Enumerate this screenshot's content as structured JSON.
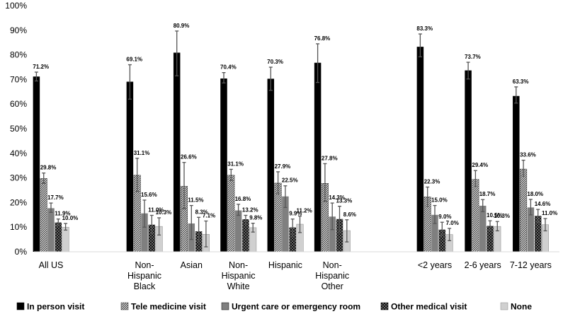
{
  "chart_data": {
    "type": "bar",
    "title": "",
    "xlabel": "",
    "ylabel": "",
    "ylim": [
      0,
      100
    ],
    "yticks": [
      "0%",
      "10%",
      "20%",
      "30%",
      "40%",
      "50%",
      "60%",
      "70%",
      "80%",
      "90%",
      "100%"
    ],
    "gridlines": false,
    "legend_position": "bottom",
    "categories": [
      {
        "label": [
          "All US"
        ],
        "group": 0
      },
      {
        "label": [
          "Non-",
          "Hispanic",
          "Black"
        ],
        "group": 1
      },
      {
        "label": [
          "Asian"
        ],
        "group": 1
      },
      {
        "label": [
          "Non-",
          "Hispanic",
          "White"
        ],
        "group": 1
      },
      {
        "label": [
          "Hispanic"
        ],
        "group": 1
      },
      {
        "label": [
          "Non-",
          "Hispanic",
          "Other"
        ],
        "group": 1
      },
      {
        "label": [
          "<2 years"
        ],
        "group": 2
      },
      {
        "label": [
          "2-6 years"
        ],
        "group": 2
      },
      {
        "label": [
          "7-12 years"
        ],
        "group": 2
      }
    ],
    "series": [
      {
        "name": "In person visit",
        "pattern": "solid-black",
        "values": [
          71.2,
          69.1,
          80.9,
          70.4,
          70.3,
          76.8,
          83.3,
          73.7,
          63.3
        ],
        "err_low": [
          69.4,
          62.0,
          71.5,
          68.6,
          65.6,
          68.8,
          79.2,
          70.2,
          60.4
        ],
        "err_high": [
          73.0,
          76.0,
          89.7,
          72.8,
          75.0,
          84.5,
          88.5,
          77.0,
          67.0
        ],
        "labels": [
          "71.2%",
          "69.1%",
          "80.9%",
          "70.4%",
          "70.3%",
          "76.8%",
          "83.3%",
          "73.7%",
          "63.3%"
        ]
      },
      {
        "name": "Tele medicine visit",
        "pattern": "hatched",
        "values": [
          29.8,
          31.1,
          26.6,
          31.1,
          27.9,
          27.8,
          22.3,
          29.4,
          33.6
        ],
        "err_low": [
          27.8,
          24.5,
          17.5,
          29.0,
          23.5,
          20.5,
          18.5,
          26.6,
          30.7
        ],
        "err_high": [
          32.0,
          38.0,
          36.3,
          33.5,
          32.5,
          35.8,
          26.3,
          33.0,
          37.2
        ],
        "labels": [
          "29.8%",
          "31.1%",
          "26.6%",
          "31.1%",
          "27.9%",
          "27.8%",
          "22.3%",
          "29.4%",
          "33.6%"
        ]
      },
      {
        "name": "Urgent care or emergency room",
        "pattern": "solid-gray",
        "values": [
          17.7,
          15.6,
          11.5,
          16.8,
          22.5,
          14.3,
          15.0,
          18.7,
          18.0
        ],
        "err_low": [
          16.0,
          10.0,
          5.0,
          14.8,
          18.0,
          9.0,
          11.5,
          16.3,
          15.0
        ],
        "err_high": [
          19.8,
          21.0,
          18.8,
          19.3,
          26.8,
          19.8,
          18.8,
          21.2,
          21.3
        ],
        "labels": [
          "17.7%",
          "15.6%",
          "11.5%",
          "16.8%",
          "22.5%",
          "14.3%",
          "15.0%",
          "18.7%",
          "18.0%"
        ]
      },
      {
        "name": "Other medical visit",
        "pattern": "checker",
        "values": [
          11.9,
          11.0,
          8.3,
          13.2,
          9.9,
          13.3,
          9.0,
          10.5,
          14.6
        ],
        "err_low": [
          10.7,
          7.5,
          4.0,
          11.3,
          6.3,
          8.0,
          6.5,
          8.6,
          12.0
        ],
        "err_high": [
          13.3,
          14.8,
          14.0,
          14.8,
          13.3,
          18.5,
          12.0,
          12.6,
          17.2
        ],
        "labels": [
          "11.9%",
          "11.0%",
          "8.3%",
          "13.2%",
          "9.9%",
          "13.3%",
          "9.0%",
          "10.5%",
          "14.6%"
        ]
      },
      {
        "name": "None",
        "pattern": "solid-light",
        "values": [
          10.0,
          10.3,
          7.1,
          9.8,
          11.2,
          8.6,
          7.0,
          10.3,
          11.0
        ],
        "err_low": [
          8.8,
          6.8,
          2.0,
          8.0,
          7.8,
          4.0,
          4.5,
          8.5,
          8.5
        ],
        "err_high": [
          11.5,
          13.8,
          12.5,
          11.6,
          14.5,
          13.0,
          9.5,
          12.3,
          13.5
        ],
        "labels": [
          "10.0%",
          "10.3%",
          "7.1%",
          "9.8%",
          "11.2%",
          "8.6%",
          "7.0%",
          "10.3%",
          "11.0%"
        ]
      }
    ]
  }
}
